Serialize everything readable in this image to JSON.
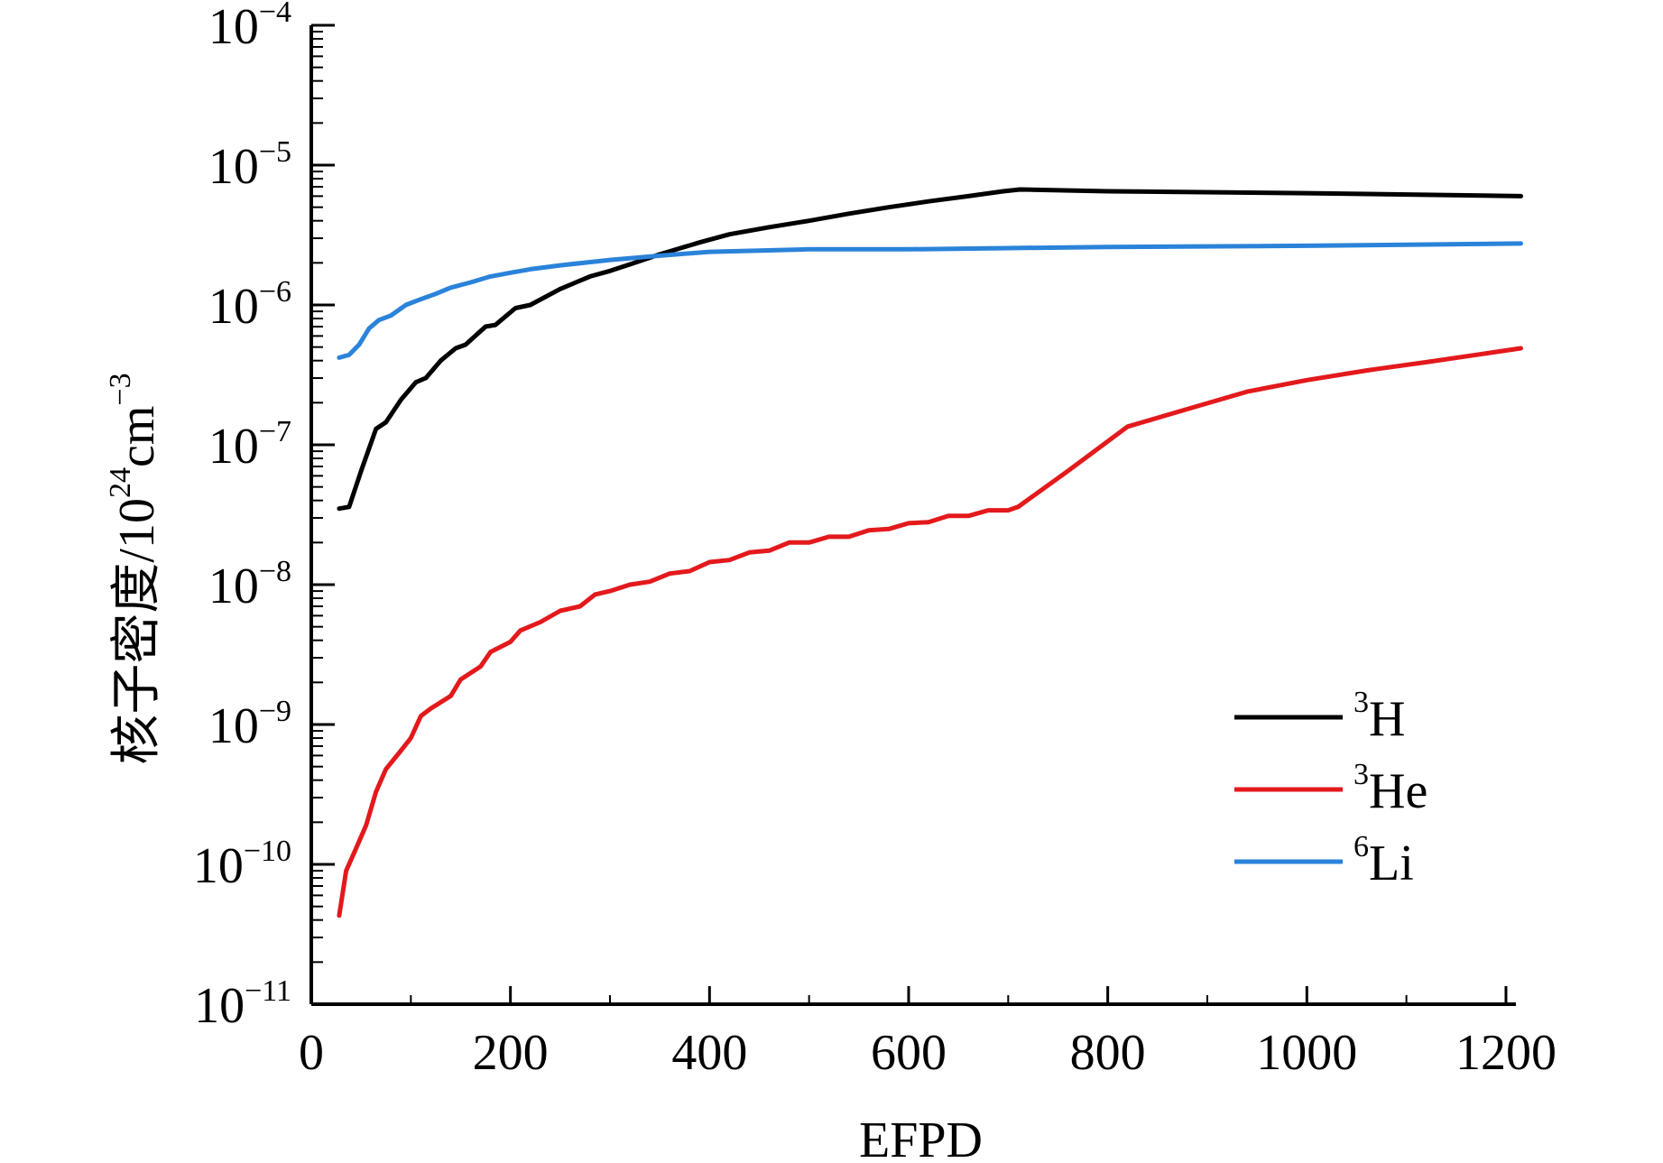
{
  "chart_data": {
    "type": "line",
    "title": "",
    "xlabel": "EFPD",
    "ylabel": "核子密度/10^24cm^-3",
    "ylabel_parts": {
      "main": "核子密度/10",
      "exp1": "24",
      "unit": "cm",
      "exp2": "−3"
    },
    "yscale": "log",
    "xlim": [
      0,
      1210
    ],
    "ylim": [
      1e-11,
      0.0001
    ],
    "x_ticks": [
      0,
      200,
      400,
      600,
      800,
      1000,
      1200
    ],
    "x_tick_labels": [
      "0",
      "200",
      "400",
      "600",
      "800",
      "1000",
      "1200"
    ],
    "y_ticks": [
      {
        "value": 0.0001,
        "base": "10",
        "exp": "−4"
      },
      {
        "value": 1e-05,
        "base": "10",
        "exp": "−5"
      },
      {
        "value": 1e-06,
        "base": "10",
        "exp": "−6"
      },
      {
        "value": 1e-07,
        "base": "10",
        "exp": "−7"
      },
      {
        "value": 1e-08,
        "base": "10",
        "exp": "−8"
      },
      {
        "value": 1e-09,
        "base": "10",
        "exp": "−9"
      },
      {
        "value": 1e-10,
        "base": "10",
        "exp": "−10"
      },
      {
        "value": 1e-11,
        "base": "10",
        "exp": "−11"
      }
    ],
    "grid": false,
    "legend_position": "lower-right",
    "series": [
      {
        "name": "3H",
        "name_sup": "3",
        "name_main": "H",
        "color": "#000000",
        "points": [
          [
            28,
            3.5e-08
          ],
          [
            38,
            3.6e-08
          ],
          [
            50,
            6.5e-08
          ],
          [
            65,
            1.3e-07
          ],
          [
            75,
            1.45e-07
          ],
          [
            90,
            2.1e-07
          ],
          [
            105,
            2.8e-07
          ],
          [
            115,
            3e-07
          ],
          [
            130,
            4e-07
          ],
          [
            145,
            4.9e-07
          ],
          [
            155,
            5.2e-07
          ],
          [
            175,
            7e-07
          ],
          [
            185,
            7.2e-07
          ],
          [
            205,
            9.5e-07
          ],
          [
            220,
            1e-06
          ],
          [
            250,
            1.3e-06
          ],
          [
            280,
            1.6e-06
          ],
          [
            300,
            1.75e-06
          ],
          [
            320,
            1.95e-06
          ],
          [
            350,
            2.3e-06
          ],
          [
            390,
            2.8e-06
          ],
          [
            420,
            3.2e-06
          ],
          [
            460,
            3.6e-06
          ],
          [
            500,
            4e-06
          ],
          [
            540,
            4.5e-06
          ],
          [
            580,
            5e-06
          ],
          [
            620,
            5.5e-06
          ],
          [
            660,
            6e-06
          ],
          [
            695,
            6.5e-06
          ],
          [
            712,
            6.7e-06
          ],
          [
            800,
            6.5e-06
          ],
          [
            1000,
            6.3e-06
          ],
          [
            1215,
            6e-06
          ]
        ]
      },
      {
        "name": "3He",
        "name_sup": "3",
        "name_main": "He",
        "color": "#e3191c",
        "points": [
          [
            28,
            4.3e-11
          ],
          [
            35,
            9e-11
          ],
          [
            45,
            1.3e-10
          ],
          [
            55,
            1.9e-10
          ],
          [
            65,
            3.3e-10
          ],
          [
            75,
            4.8e-10
          ],
          [
            90,
            6.5e-10
          ],
          [
            100,
            8e-10
          ],
          [
            110,
            1.15e-09
          ],
          [
            120,
            1.3e-09
          ],
          [
            140,
            1.6e-09
          ],
          [
            150,
            2.1e-09
          ],
          [
            170,
            2.6e-09
          ],
          [
            180,
            3.3e-09
          ],
          [
            200,
            3.9e-09
          ],
          [
            210,
            4.7e-09
          ],
          [
            230,
            5.4e-09
          ],
          [
            250,
            6.5e-09
          ],
          [
            270,
            7e-09
          ],
          [
            285,
            8.5e-09
          ],
          [
            300,
            9e-09
          ],
          [
            320,
            1e-08
          ],
          [
            340,
            1.05e-08
          ],
          [
            360,
            1.2e-08
          ],
          [
            380,
            1.25e-08
          ],
          [
            400,
            1.45e-08
          ],
          [
            420,
            1.5e-08
          ],
          [
            440,
            1.7e-08
          ],
          [
            460,
            1.75e-08
          ],
          [
            480,
            2e-08
          ],
          [
            500,
            2e-08
          ],
          [
            520,
            2.2e-08
          ],
          [
            540,
            2.2e-08
          ],
          [
            560,
            2.45e-08
          ],
          [
            580,
            2.5e-08
          ],
          [
            600,
            2.75e-08
          ],
          [
            620,
            2.8e-08
          ],
          [
            640,
            3.1e-08
          ],
          [
            660,
            3.1e-08
          ],
          [
            680,
            3.4e-08
          ],
          [
            700,
            3.4e-08
          ],
          [
            710,
            3.6e-08
          ],
          [
            760,
            6.5e-08
          ],
          [
            820,
            1.35e-07
          ],
          [
            880,
            1.8e-07
          ],
          [
            940,
            2.4e-07
          ],
          [
            1000,
            2.9e-07
          ],
          [
            1060,
            3.4e-07
          ],
          [
            1120,
            3.9e-07
          ],
          [
            1170,
            4.4e-07
          ],
          [
            1215,
            4.9e-07
          ]
        ]
      },
      {
        "name": "6Li",
        "name_sup": "6",
        "name_main": "Li",
        "color": "#2a83d9",
        "points": [
          [
            28,
            4.2e-07
          ],
          [
            38,
            4.4e-07
          ],
          [
            48,
            5.2e-07
          ],
          [
            58,
            6.8e-07
          ],
          [
            68,
            7.8e-07
          ],
          [
            80,
            8.4e-07
          ],
          [
            95,
            1e-06
          ],
          [
            110,
            1.1e-06
          ],
          [
            125,
            1.2e-06
          ],
          [
            140,
            1.33e-06
          ],
          [
            160,
            1.45e-06
          ],
          [
            180,
            1.6e-06
          ],
          [
            200,
            1.7e-06
          ],
          [
            220,
            1.8e-06
          ],
          [
            250,
            1.92e-06
          ],
          [
            300,
            2.1e-06
          ],
          [
            350,
            2.25e-06
          ],
          [
            400,
            2.4e-06
          ],
          [
            450,
            2.45e-06
          ],
          [
            500,
            2.5e-06
          ],
          [
            600,
            2.5e-06
          ],
          [
            700,
            2.55e-06
          ],
          [
            800,
            2.6e-06
          ],
          [
            1000,
            2.65e-06
          ],
          [
            1215,
            2.75e-06
          ]
        ]
      }
    ]
  }
}
